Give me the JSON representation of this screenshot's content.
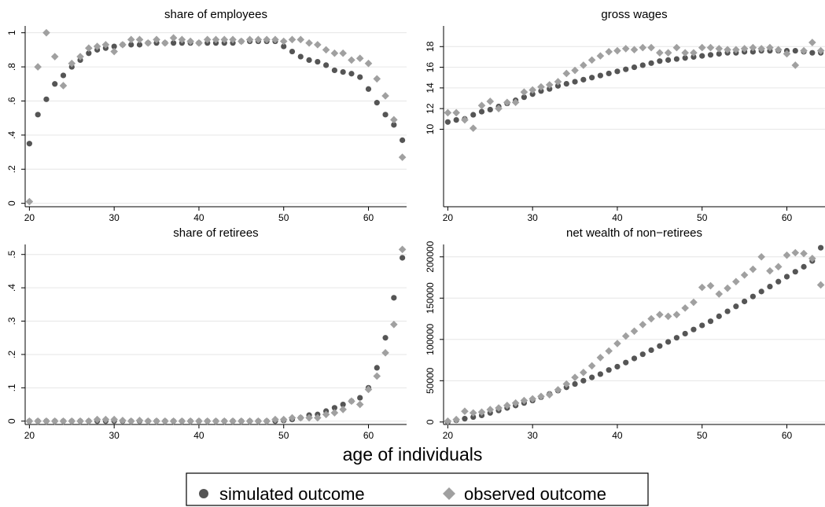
{
  "figure": {
    "xlabel": "age of individuals",
    "legend": [
      {
        "label": "simulated outcome",
        "marker": "circle",
        "color": "#555555"
      },
      {
        "label": "observed outcome",
        "marker": "diamond",
        "color": "#a0a0a0"
      }
    ]
  },
  "chart_data": [
    {
      "type": "scatter",
      "title": "share of employees",
      "xlabel": "",
      "ylabel": "",
      "xlim": [
        19.5,
        64.5
      ],
      "ylim": [
        -0.02,
        1.04
      ],
      "xticks": [
        20,
        30,
        40,
        50,
        60
      ],
      "xtick_labels": [
        "20",
        "30",
        "40",
        "50",
        "60"
      ],
      "yticks": [
        0,
        0.2,
        0.4,
        0.6,
        0.8,
        1
      ],
      "ytick_labels": [
        "0",
        ".2",
        ".4",
        ".6",
        ".8",
        "1"
      ],
      "grid": true,
      "x": [
        20,
        21,
        22,
        23,
        24,
        25,
        26,
        27,
        28,
        29,
        30,
        31,
        32,
        33,
        34,
        35,
        36,
        37,
        38,
        39,
        40,
        41,
        42,
        43,
        44,
        45,
        46,
        47,
        48,
        49,
        50,
        51,
        52,
        53,
        54,
        55,
        56,
        57,
        58,
        59,
        60,
        61,
        62,
        63,
        64
      ],
      "series": [
        {
          "name": "simulated outcome",
          "values": [
            0.35,
            0.52,
            0.61,
            0.7,
            0.75,
            0.8,
            0.84,
            0.88,
            0.9,
            0.91,
            0.92,
            0.93,
            0.93,
            0.93,
            0.94,
            0.94,
            0.94,
            0.94,
            0.94,
            0.94,
            0.94,
            0.94,
            0.94,
            0.94,
            0.94,
            0.95,
            0.95,
            0.95,
            0.95,
            0.95,
            0.92,
            0.89,
            0.86,
            0.84,
            0.83,
            0.81,
            0.78,
            0.77,
            0.76,
            0.74,
            0.67,
            0.59,
            0.52,
            0.46,
            0.37
          ]
        },
        {
          "name": "observed outcome",
          "values": [
            0.01,
            0.8,
            1.0,
            0.86,
            0.69,
            0.82,
            0.86,
            0.91,
            0.92,
            0.93,
            0.89,
            0.93,
            0.96,
            0.96,
            0.94,
            0.96,
            0.94,
            0.97,
            0.96,
            0.95,
            0.94,
            0.96,
            0.96,
            0.96,
            0.96,
            0.95,
            0.96,
            0.96,
            0.96,
            0.96,
            0.95,
            0.96,
            0.96,
            0.94,
            0.93,
            0.9,
            0.88,
            0.88,
            0.84,
            0.85,
            0.82,
            0.73,
            0.63,
            0.49,
            0.27
          ]
        }
      ]
    },
    {
      "type": "scatter",
      "title": "gross wages",
      "xlabel": "",
      "ylabel": "",
      "xlim": [
        19.5,
        64.5
      ],
      "ylim": [
        2.5,
        20
      ],
      "xticks": [
        20,
        30,
        40,
        50,
        60
      ],
      "xtick_labels": [
        "20",
        "30",
        "40",
        "50",
        "60"
      ],
      "yticks": [
        10,
        12,
        14,
        16,
        18
      ],
      "ytick_labels": [
        "10",
        "12",
        "14",
        "16",
        "18"
      ],
      "grid": true,
      "x": [
        20,
        21,
        22,
        23,
        24,
        25,
        26,
        27,
        28,
        29,
        30,
        31,
        32,
        33,
        34,
        35,
        36,
        37,
        38,
        39,
        40,
        41,
        42,
        43,
        44,
        45,
        46,
        47,
        48,
        49,
        50,
        51,
        52,
        53,
        54,
        55,
        56,
        57,
        58,
        59,
        60,
        61,
        62,
        63,
        64
      ],
      "series": [
        {
          "name": "simulated outcome",
          "values": [
            10.7,
            10.9,
            11.0,
            11.4,
            11.7,
            11.9,
            12.2,
            12.5,
            12.8,
            13.1,
            13.4,
            13.7,
            13.9,
            14.2,
            14.4,
            14.6,
            14.8,
            15.0,
            15.2,
            15.4,
            15.6,
            15.8,
            16.0,
            16.2,
            16.4,
            16.6,
            16.7,
            16.8,
            16.9,
            17.0,
            17.1,
            17.2,
            17.3,
            17.4,
            17.4,
            17.5,
            17.5,
            17.6,
            17.6,
            17.6,
            17.6,
            17.6,
            17.5,
            17.4,
            17.4
          ]
        },
        {
          "name": "observed outcome",
          "values": [
            11.6,
            11.6,
            10.9,
            10.1,
            12.3,
            12.7,
            12.0,
            12.6,
            12.6,
            13.6,
            13.8,
            14.1,
            14.3,
            14.6,
            15.4,
            15.7,
            16.2,
            16.7,
            17.1,
            17.5,
            17.6,
            17.8,
            17.7,
            17.9,
            17.9,
            17.4,
            17.4,
            17.9,
            17.4,
            17.4,
            17.9,
            17.9,
            17.8,
            17.7,
            17.7,
            17.8,
            17.9,
            17.8,
            17.9,
            17.7,
            17.3,
            16.2,
            17.6,
            18.4,
            17.6
          ]
        }
      ]
    },
    {
      "type": "scatter",
      "title": "share of retirees",
      "xlabel": "",
      "ylabel": "",
      "xlim": [
        19.5,
        64.5
      ],
      "ylim": [
        -0.01,
        0.53
      ],
      "xticks": [
        20,
        30,
        40,
        50,
        60
      ],
      "xtick_labels": [
        "20",
        "30",
        "40",
        "50",
        "60"
      ],
      "yticks": [
        0,
        0.1,
        0.2,
        0.3,
        0.4,
        0.5
      ],
      "ytick_labels": [
        "0",
        ".1",
        ".2",
        ".3",
        ".4",
        ".5"
      ],
      "grid": true,
      "x": [
        20,
        21,
        22,
        23,
        24,
        25,
        26,
        27,
        28,
        29,
        30,
        31,
        32,
        33,
        34,
        35,
        36,
        37,
        38,
        39,
        40,
        41,
        42,
        43,
        44,
        45,
        46,
        47,
        48,
        49,
        50,
        51,
        52,
        53,
        54,
        55,
        56,
        57,
        58,
        59,
        60,
        61,
        62,
        63,
        64
      ],
      "series": [
        {
          "name": "simulated outcome",
          "values": [
            0,
            0,
            0,
            0,
            0,
            0,
            0,
            0,
            0,
            0,
            0,
            0,
            0,
            0,
            0,
            0,
            0,
            0,
            0,
            0,
            0,
            0,
            0,
            0,
            0,
            0,
            0,
            0,
            0,
            0,
            0.002,
            0.005,
            0.01,
            0.018,
            0.02,
            0.03,
            0.04,
            0.05,
            0.06,
            0.07,
            0.1,
            0.16,
            0.25,
            0.37,
            0.49
          ]
        },
        {
          "name": "observed outcome",
          "values": [
            0,
            0,
            0,
            0,
            0,
            0,
            0,
            0,
            0.005,
            0.005,
            0.005,
            0.002,
            0,
            0.002,
            0,
            0,
            0,
            0,
            0,
            0,
            0,
            0,
            0,
            0,
            0,
            0,
            0,
            0,
            0,
            0.005,
            0.005,
            0.01,
            0.01,
            0.01,
            0.01,
            0.02,
            0.025,
            0.035,
            0.06,
            0.05,
            0.095,
            0.135,
            0.205,
            0.29,
            0.515
          ]
        }
      ]
    },
    {
      "type": "scatter",
      "title": "net wealth of non−retirees",
      "xlabel": "",
      "ylabel": "",
      "xlim": [
        19.5,
        64.5
      ],
      "ylim": [
        -3000,
        215000
      ],
      "xticks": [
        20,
        30,
        40,
        50,
        60
      ],
      "xtick_labels": [
        "20",
        "30",
        "40",
        "50",
        "60"
      ],
      "yticks": [
        0,
        50000,
        100000,
        150000,
        200000
      ],
      "ytick_labels": [
        "0",
        "50000",
        "100000",
        "150000",
        "200000"
      ],
      "grid": true,
      "x": [
        20,
        21,
        22,
        23,
        24,
        25,
        26,
        27,
        28,
        29,
        30,
        31,
        32,
        33,
        34,
        35,
        36,
        37,
        38,
        39,
        40,
        41,
        42,
        43,
        44,
        45,
        46,
        47,
        48,
        49,
        50,
        51,
        52,
        53,
        54,
        55,
        56,
        57,
        58,
        59,
        60,
        61,
        62,
        63,
        64
      ],
      "series": [
        {
          "name": "simulated outcome",
          "values": [
            0,
            2000,
            4000,
            6000,
            8000,
            11000,
            14000,
            17000,
            20000,
            23000,
            26000,
            30000,
            34000,
            38000,
            42000,
            46000,
            50000,
            54000,
            58000,
            63000,
            67000,
            72000,
            77000,
            82000,
            87000,
            92000,
            97000,
            102000,
            107000,
            112000,
            117000,
            122000,
            128000,
            134000,
            140000,
            146000,
            152000,
            158000,
            164000,
            170000,
            176000,
            182000,
            188000,
            195000,
            211000
          ]
        },
        {
          "name": "observed outcome",
          "values": [
            1000,
            3000,
            13000,
            11000,
            12000,
            15000,
            17000,
            20000,
            23000,
            26000,
            28000,
            31000,
            33000,
            39000,
            46000,
            54000,
            60000,
            68000,
            78000,
            86000,
            95000,
            104000,
            110000,
            118000,
            125000,
            130000,
            128000,
            130000,
            138000,
            145000,
            163000,
            165000,
            155000,
            162000,
            170000,
            178000,
            185000,
            200000,
            183000,
            188000,
            202000,
            205000,
            204000,
            198000,
            166000
          ]
        }
      ]
    }
  ]
}
